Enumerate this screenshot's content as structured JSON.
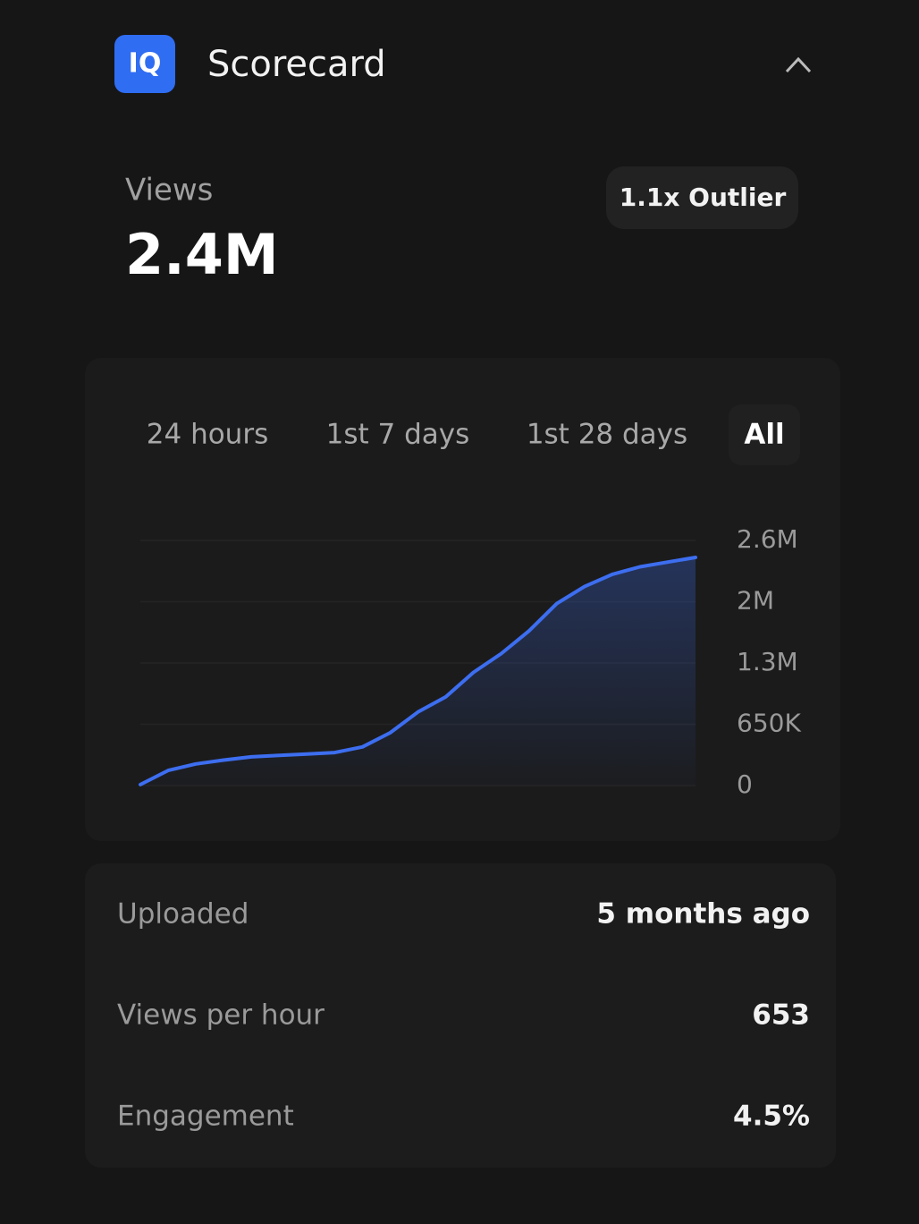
{
  "header": {
    "logo": "IQ",
    "title": "Scorecard"
  },
  "views": {
    "label": "Views",
    "value": "2.4M",
    "badge": "1.1x Outlier"
  },
  "tabs": [
    "24 hours",
    "1st 7 days",
    "1st 28 days",
    "All"
  ],
  "active_tab": 3,
  "chart_data": {
    "type": "area",
    "color": "#3d6ef0",
    "values": [
      10000,
      160000,
      230000,
      270000,
      305000,
      320000,
      335000,
      350000,
      410000,
      560000,
      780000,
      940000,
      1200000,
      1400000,
      1640000,
      1930000,
      2110000,
      2240000,
      2320000,
      2370000,
      2420000
    ],
    "ylim": [
      0,
      2600000
    ],
    "yticks": [
      0,
      {
        "value": 650000,
        "label": "650K"
      },
      {
        "value": 1300000,
        "label": "1.3M"
      },
      {
        "value": 1950000,
        "label": "2M"
      },
      {
        "value": 2600000,
        "label": "2.6M"
      }
    ],
    "grid": true
  },
  "stats": [
    {
      "label": "Uploaded",
      "value": "5 months ago"
    },
    {
      "label": "Views per hour",
      "value": "653"
    },
    {
      "label": "Engagement",
      "value": "4.5%"
    }
  ]
}
